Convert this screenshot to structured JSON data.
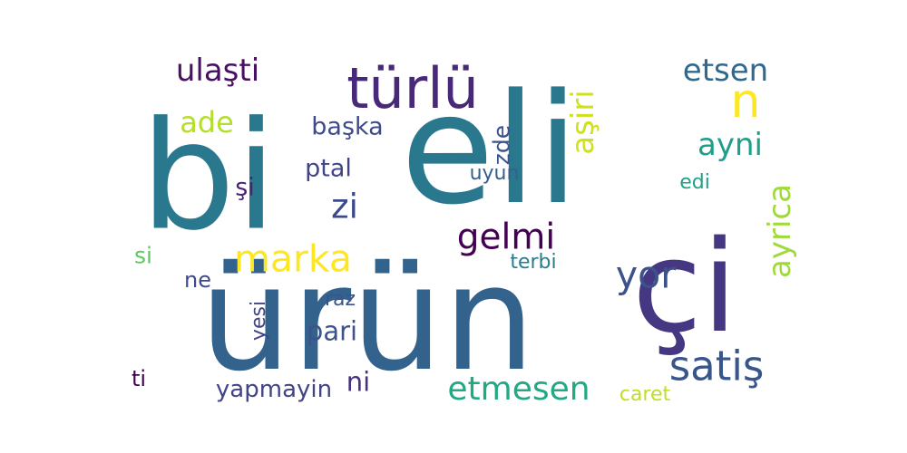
{
  "word_cloud": {
    "words": [
      {
        "text": "bi",
        "weight": 100,
        "color": "#2a788e"
      },
      {
        "text": "eli",
        "weight": 96,
        "color": "#2a788e"
      },
      {
        "text": "ürün",
        "weight": 92,
        "color": "#33638d"
      },
      {
        "text": "çi",
        "weight": 80,
        "color": "#453781"
      },
      {
        "text": "türlü",
        "weight": 40,
        "color": "#482878"
      },
      {
        "text": "n",
        "weight": 30,
        "color": "#fde725"
      },
      {
        "text": "ulaşti",
        "weight": 22,
        "color": "#471063"
      },
      {
        "text": "etsen",
        "weight": 22,
        "color": "#31688e"
      },
      {
        "text": "aşiri",
        "weight": 22,
        "color": "#d0e11c"
      },
      {
        "text": "ade",
        "weight": 21,
        "color": "#b5de2b"
      },
      {
        "text": "ayni",
        "weight": 22,
        "color": "#1f9e89"
      },
      {
        "text": "başka",
        "weight": 17,
        "color": "#3e4a89"
      },
      {
        "text": "zde",
        "weight": 15,
        "color": "#3b528b"
      },
      {
        "text": "ptal",
        "weight": 17,
        "color": "#414487"
      },
      {
        "text": "şi",
        "weight": 17,
        "color": "#482475"
      },
      {
        "text": "zi",
        "weight": 24,
        "color": "#3e4989"
      },
      {
        "text": "uyun",
        "weight": 15,
        "color": "#355f8d"
      },
      {
        "text": "edi",
        "weight": 15,
        "color": "#1fa188"
      },
      {
        "text": "ayrica",
        "weight": 22,
        "color": "#a0da39"
      },
      {
        "text": "gelmi",
        "weight": 25,
        "color": "#440154"
      },
      {
        "text": "marka",
        "weight": 26,
        "color": "#fde725"
      },
      {
        "text": "si",
        "weight": 15,
        "color": "#5ec962"
      },
      {
        "text": "terbi",
        "weight": 15,
        "color": "#287c8e"
      },
      {
        "text": "yor",
        "weight": 26,
        "color": "#3b528b"
      },
      {
        "text": "ne",
        "weight": 15,
        "color": "#3e4a89"
      },
      {
        "text": "raz",
        "weight": 15,
        "color": "#3b528b"
      },
      {
        "text": "yesi",
        "weight": 15,
        "color": "#414487"
      },
      {
        "text": "pari",
        "weight": 19,
        "color": "#3b528b"
      },
      {
        "text": "satiş",
        "weight": 30,
        "color": "#39568c"
      },
      {
        "text": "ti",
        "weight": 15,
        "color": "#440154"
      },
      {
        "text": "ni",
        "weight": 19,
        "color": "#46327e"
      },
      {
        "text": "yapmayin",
        "weight": 18,
        "color": "#414487"
      },
      {
        "text": "etmesen",
        "weight": 26,
        "color": "#22a884"
      },
      {
        "text": "caret",
        "weight": 15,
        "color": "#bddf26"
      }
    ]
  }
}
